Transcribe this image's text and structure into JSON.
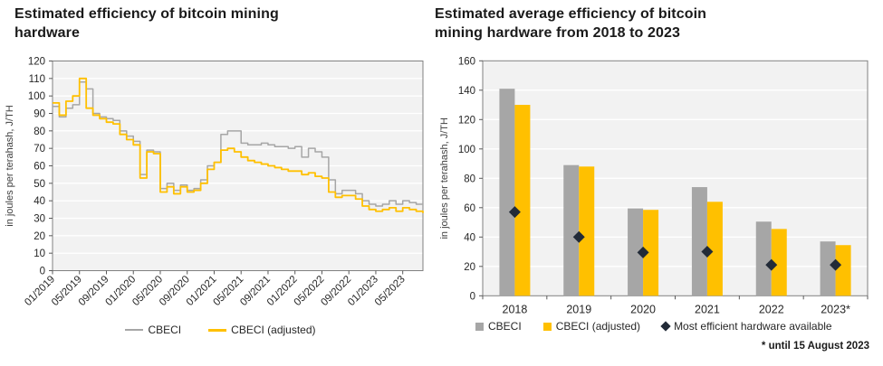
{
  "figure": {
    "background": "#ffffff"
  },
  "colors": {
    "title_text": "#1a1a1a",
    "axis_text": "#262626",
    "axis_line": "#595959",
    "plot_background": "#f2f2f2",
    "gridline": "#ffffff",
    "cbeci": "#a6a6a6",
    "cbeci_adjusted": "#ffc000",
    "most_efficient": "#222b38"
  },
  "chart_data": [
    {
      "type": "line",
      "title": "Estimated efficiency of bitcoin mining hardware",
      "title_lines": [
        "Estimated efficiency of bitcoin mining",
        "hardware"
      ],
      "ylabel": "in joules per terahash, J/TH",
      "xlabel": "",
      "ylim": [
        0,
        120
      ],
      "ytick_step": 10,
      "grid": true,
      "legend_position": "bottom",
      "x_tick_labels": [
        "01/2019",
        "05/2019",
        "09/2019",
        "01/2020",
        "05/2020",
        "09/2020",
        "01/2021",
        "05/2021",
        "09/2021",
        "01/2022",
        "05/2022",
        "09/2022",
        "01/2023",
        "05/2023"
      ],
      "x": [
        "01/2019",
        "02/2019",
        "03/2019",
        "04/2019",
        "05/2019",
        "06/2019",
        "07/2019",
        "08/2019",
        "09/2019",
        "10/2019",
        "11/2019",
        "12/2019",
        "01/2020",
        "02/2020",
        "03/2020",
        "04/2020",
        "05/2020",
        "06/2020",
        "07/2020",
        "08/2020",
        "09/2020",
        "10/2020",
        "11/2020",
        "12/2020",
        "01/2021",
        "02/2021",
        "03/2021",
        "04/2021",
        "05/2021",
        "06/2021",
        "07/2021",
        "08/2021",
        "09/2021",
        "10/2021",
        "11/2021",
        "12/2021",
        "01/2022",
        "02/2022",
        "03/2022",
        "04/2022",
        "05/2022",
        "06/2022",
        "07/2022",
        "08/2022",
        "09/2022",
        "10/2022",
        "11/2022",
        "12/2022",
        "01/2023",
        "02/2023",
        "03/2023",
        "04/2023",
        "05/2023",
        "06/2023",
        "07/2023",
        "08/2023"
      ],
      "series": [
        {
          "name": "CBECI",
          "color": "#a6a6a6",
          "values": [
            94,
            88,
            93,
            95,
            108,
            104,
            90,
            88,
            87,
            86,
            80,
            77,
            74,
            55,
            69,
            68,
            47,
            50,
            46,
            49,
            46,
            47,
            52,
            60,
            62,
            78,
            80,
            80,
            73,
            72,
            72,
            73,
            72,
            71,
            71,
            70,
            71,
            65,
            70,
            68,
            65,
            52,
            44,
            46,
            46,
            44,
            40,
            38,
            37,
            38,
            40,
            38,
            40,
            39,
            38,
            38
          ]
        },
        {
          "name": "CBECI (adjusted)",
          "color": "#ffc000",
          "values": [
            96,
            89,
            97,
            100,
            110,
            93,
            89,
            87,
            85,
            84,
            78,
            75,
            72,
            53,
            68,
            67,
            45,
            48,
            44,
            48,
            45,
            46,
            50,
            58,
            62,
            69,
            70,
            68,
            65,
            63,
            62,
            61,
            60,
            59,
            58,
            57,
            57,
            55,
            56,
            54,
            53,
            45,
            42,
            43,
            43,
            41,
            37,
            35,
            34,
            35,
            36,
            34,
            36,
            35,
            34,
            33
          ]
        }
      ]
    },
    {
      "type": "bar",
      "title": "Estimated average efficiency of bitcoin mining hardware from 2018 to 2023",
      "title_lines": [
        "Estimated average efficiency of bitcoin",
        "mining hardware from 2018 to 2023"
      ],
      "ylabel": "in joules per terahash, J/TH",
      "xlabel": "",
      "ylim": [
        0,
        160
      ],
      "ytick_step": 20,
      "grid": true,
      "legend_position": "bottom",
      "categories": [
        "2018",
        "2019",
        "2020",
        "2021",
        "2022",
        "2023*"
      ],
      "series": [
        {
          "name": "CBECI",
          "type": "bar",
          "color": "#a6a6a6",
          "values": [
            141,
            89,
            59.5,
            74,
            50.5,
            37
          ]
        },
        {
          "name": "CBECI (adjusted)",
          "type": "bar",
          "color": "#ffc000",
          "values": [
            130,
            88,
            58.5,
            64,
            45.5,
            34.5
          ]
        },
        {
          "name": "Most efficient hardware available",
          "type": "point-diamond",
          "color": "#222b38",
          "values": [
            57,
            40,
            29.5,
            30,
            21,
            21
          ]
        }
      ],
      "footnote": "* until 15 August 2023"
    }
  ]
}
